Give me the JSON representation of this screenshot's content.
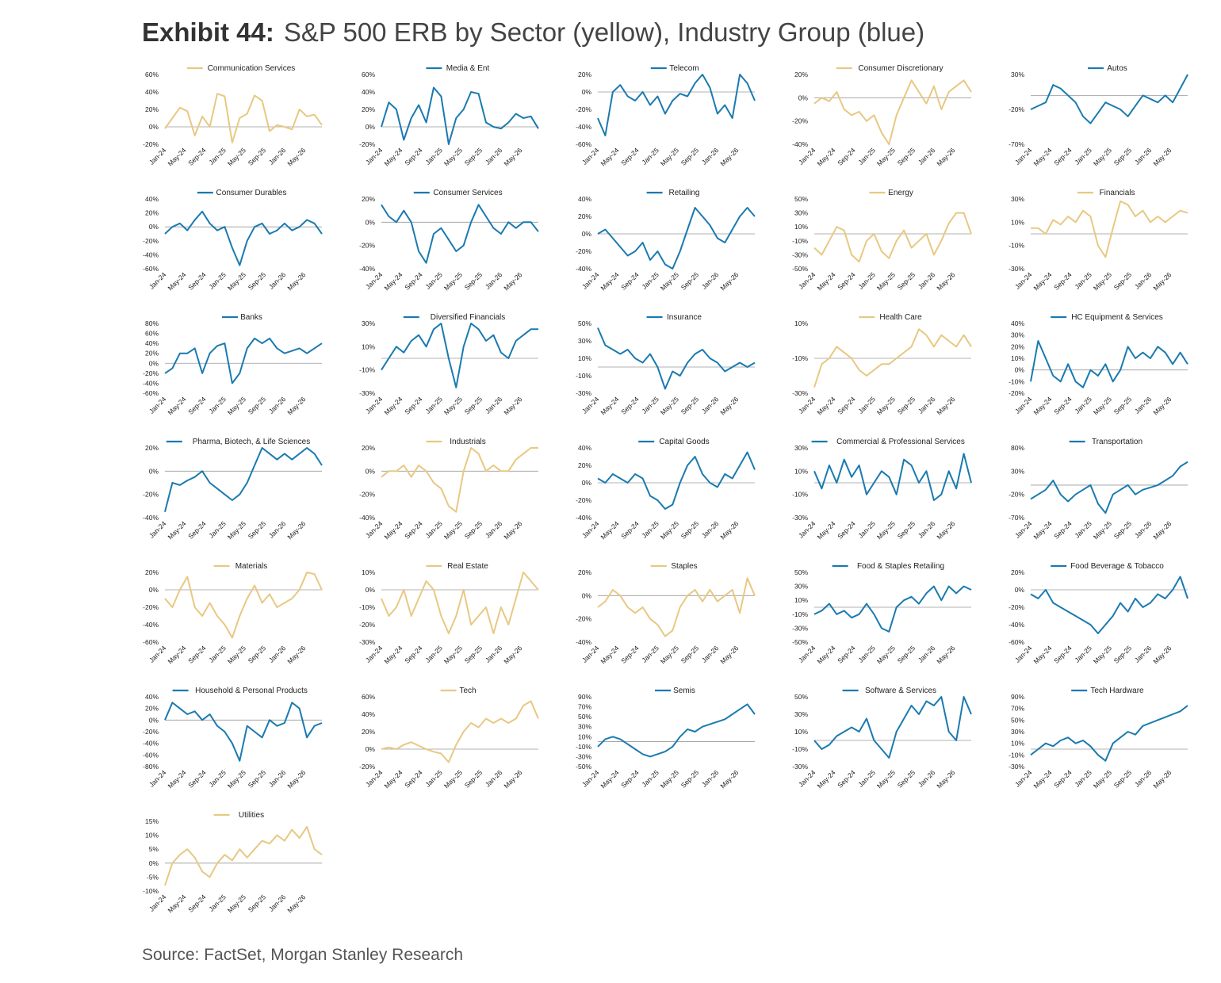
{
  "header": {
    "exhibit": "Exhibit 44:",
    "title": "S&P 500 ERB by Sector (yellow), Industry Group (blue)"
  },
  "footer": {
    "source": "Source: FactSet, Morgan Stanley Research"
  },
  "colors": {
    "sector": "#E8C882",
    "industry": "#1A7AB0",
    "zero_line": "#9a9a9a"
  },
  "x_ticks": [
    "Jan-24",
    "May-24",
    "Sep-24",
    "Jan-25",
    "May-25",
    "Sep-25",
    "Jan-26",
    "May-26"
  ],
  "chart_data": [
    {
      "type": "line",
      "name": "Communication Services",
      "kind": "sector",
      "ylim": [
        -20,
        60
      ],
      "yticks": [
        "-20%",
        "0%",
        "20%",
        "40%",
        "60%"
      ],
      "y": [
        -2,
        10,
        22,
        18,
        -10,
        12,
        0,
        38,
        35,
        -18,
        10,
        15,
        36,
        30,
        -5,
        2,
        0,
        -3,
        20,
        12,
        14,
        2
      ]
    },
    {
      "type": "line",
      "name": "Media & Ent",
      "kind": "industry",
      "ylim": [
        -20,
        60
      ],
      "yticks": [
        "-20%",
        "0%",
        "20%",
        "40%",
        "60%"
      ],
      "y": [
        0,
        28,
        20,
        -15,
        10,
        25,
        5,
        45,
        35,
        -20,
        10,
        20,
        40,
        38,
        5,
        0,
        -2,
        5,
        15,
        10,
        12,
        -2
      ]
    },
    {
      "type": "line",
      "name": "Telecom",
      "kind": "industry",
      "ylim": [
        -60,
        20
      ],
      "yticks": [
        "-60%",
        "-40%",
        "-20%",
        "0%",
        "20%"
      ],
      "y": [
        -30,
        -50,
        0,
        8,
        -5,
        -10,
        0,
        -15,
        -5,
        -25,
        -10,
        -2,
        -5,
        10,
        20,
        5,
        -25,
        -15,
        -30,
        20,
        10,
        -10
      ]
    },
    {
      "type": "line",
      "name": "Consumer Discretionary",
      "kind": "sector",
      "ylim": [
        -40,
        20
      ],
      "yticks": [
        "-40%",
        "-20%",
        "0%",
        "20%"
      ],
      "y": [
        -5,
        0,
        -3,
        5,
        -10,
        -15,
        -12,
        -20,
        -15,
        -30,
        -40,
        -15,
        0,
        15,
        5,
        -5,
        10,
        -10,
        5,
        10,
        15,
        5
      ]
    },
    {
      "type": "line",
      "name": "Autos",
      "kind": "industry",
      "ylim": [
        -70,
        30
      ],
      "yticks": [
        "-70%",
        "-20%",
        "30%"
      ],
      "y": [
        -20,
        -15,
        -10,
        15,
        10,
        0,
        -10,
        -30,
        -40,
        -25,
        -10,
        -15,
        -20,
        -30,
        -15,
        0,
        -5,
        -10,
        0,
        -10,
        10,
        30
      ]
    },
    {
      "type": "line",
      "name": "Consumer Durables",
      "kind": "industry",
      "ylim": [
        -60,
        40
      ],
      "yticks": [
        "-60%",
        "-40%",
        "-20%",
        "0%",
        "20%",
        "40%"
      ],
      "y": [
        -10,
        0,
        5,
        -5,
        10,
        22,
        5,
        -5,
        0,
        -30,
        -55,
        -20,
        0,
        5,
        -10,
        -5,
        5,
        -5,
        0,
        10,
        5,
        -10
      ]
    },
    {
      "type": "line",
      "name": "Consumer Services",
      "kind": "industry",
      "ylim": [
        -40,
        20
      ],
      "yticks": [
        "-40%",
        "-20%",
        "0%",
        "20%"
      ],
      "y": [
        15,
        5,
        0,
        10,
        0,
        -25,
        -35,
        -10,
        -5,
        -15,
        -25,
        -20,
        0,
        15,
        5,
        -5,
        -10,
        0,
        -5,
        0,
        0,
        -8
      ]
    },
    {
      "type": "line",
      "name": "Retailing",
      "kind": "industry",
      "ylim": [
        -40,
        40
      ],
      "yticks": [
        "-40%",
        "-20%",
        "0%",
        "20%",
        "40%"
      ],
      "y": [
        0,
        5,
        -5,
        -15,
        -25,
        -20,
        -10,
        -30,
        -20,
        -35,
        -40,
        -20,
        5,
        30,
        20,
        10,
        -5,
        -10,
        5,
        20,
        30,
        20
      ]
    },
    {
      "type": "line",
      "name": "Energy",
      "kind": "sector",
      "ylim": [
        -50,
        50
      ],
      "yticks": [
        "-50%",
        "-30%",
        "-10%",
        "10%",
        "30%",
        "50%"
      ],
      "y": [
        -20,
        -30,
        -10,
        10,
        5,
        -30,
        -40,
        -10,
        0,
        -25,
        -35,
        -10,
        5,
        -20,
        -10,
        0,
        -30,
        -10,
        15,
        30,
        30,
        0
      ]
    },
    {
      "type": "line",
      "name": "Financials",
      "kind": "sector",
      "ylim": [
        -30,
        30
      ],
      "yticks": [
        "-30%",
        "-10%",
        "10%",
        "30%"
      ],
      "y": [
        5,
        5,
        0,
        12,
        8,
        15,
        10,
        20,
        15,
        -10,
        -20,
        5,
        28,
        25,
        15,
        20,
        10,
        15,
        10,
        15,
        20,
        18
      ]
    },
    {
      "type": "line",
      "name": "Banks",
      "kind": "industry",
      "ylim": [
        -60,
        80
      ],
      "yticks": [
        "-60%",
        "-40%",
        "-20%",
        "0%",
        "20%",
        "40%",
        "60%",
        "80%"
      ],
      "y": [
        -20,
        -10,
        20,
        20,
        30,
        -20,
        20,
        35,
        40,
        -40,
        -20,
        30,
        50,
        40,
        50,
        30,
        20,
        25,
        30,
        20,
        30,
        40
      ]
    },
    {
      "type": "line",
      "name": "Diversified Financials",
      "kind": "industry",
      "ylim": [
        -30,
        30
      ],
      "yticks": [
        "-30%",
        "-10%",
        "10%",
        "30%"
      ],
      "y": [
        -10,
        0,
        10,
        5,
        15,
        20,
        10,
        25,
        30,
        0,
        -25,
        10,
        30,
        25,
        15,
        20,
        5,
        0,
        15,
        20,
        25,
        25
      ]
    },
    {
      "type": "line",
      "name": "Insurance",
      "kind": "industry",
      "ylim": [
        -30,
        50
      ],
      "yticks": [
        "-30%",
        "-10%",
        "10%",
        "30%",
        "50%"
      ],
      "y": [
        45,
        25,
        20,
        15,
        20,
        10,
        5,
        15,
        0,
        -25,
        -5,
        -10,
        5,
        15,
        20,
        10,
        5,
        -5,
        0,
        5,
        0,
        5
      ]
    },
    {
      "type": "line",
      "name": "Health Care",
      "kind": "sector",
      "ylim": [
        -30,
        30
      ],
      "yticks": [
        "-30%",
        "-10%",
        "10%"
      ],
      "y": [
        -25,
        -5,
        0,
        10,
        5,
        0,
        -10,
        -15,
        -10,
        -5,
        -5,
        0,
        5,
        10,
        25,
        20,
        10,
        20,
        15,
        10,
        20,
        10
      ]
    },
    {
      "type": "line",
      "name": "HC Equipment & Services",
      "kind": "industry",
      "ylim": [
        -20,
        40
      ],
      "yticks": [
        "-20%",
        "-10%",
        "0%",
        "10%",
        "20%",
        "30%",
        "40%"
      ],
      "y": [
        -10,
        25,
        10,
        -5,
        -10,
        5,
        -10,
        -15,
        0,
        -5,
        5,
        -10,
        0,
        20,
        10,
        15,
        10,
        20,
        15,
        5,
        15,
        5
      ]
    },
    {
      "type": "line",
      "name": "Pharma, Biotech, & Life Sciences",
      "kind": "industry",
      "ylim": [
        -40,
        20
      ],
      "yticks": [
        "-40%",
        "-20%",
        "0%",
        "20%"
      ],
      "y": [
        -35,
        -10,
        -12,
        -8,
        -5,
        0,
        -10,
        -15,
        -20,
        -25,
        -20,
        -10,
        5,
        20,
        15,
        10,
        15,
        10,
        15,
        20,
        15,
        5
      ]
    },
    {
      "type": "line",
      "name": "Industrials",
      "kind": "sector",
      "ylim": [
        -40,
        20
      ],
      "yticks": [
        "-40%",
        "-20%",
        "0%",
        "20%"
      ],
      "y": [
        -5,
        0,
        0,
        5,
        -5,
        5,
        0,
        -10,
        -15,
        -30,
        -35,
        0,
        20,
        15,
        0,
        5,
        0,
        0,
        10,
        15,
        30,
        20
      ]
    },
    {
      "type": "line",
      "name": "Capital Goods",
      "kind": "industry",
      "ylim": [
        -40,
        40
      ],
      "yticks": [
        "-40%",
        "-20%",
        "0%",
        "20%",
        "40%"
      ],
      "y": [
        5,
        0,
        10,
        5,
        0,
        10,
        5,
        -15,
        -20,
        -30,
        -25,
        0,
        20,
        30,
        10,
        0,
        -5,
        10,
        5,
        20,
        35,
        15
      ]
    },
    {
      "type": "line",
      "name": "Commercial & Professional Services",
      "kind": "industry",
      "ylim": [
        -30,
        30
      ],
      "yticks": [
        "-30%",
        "-10%",
        "10%",
        "30%"
      ],
      "y": [
        10,
        -5,
        15,
        0,
        20,
        5,
        15,
        -10,
        0,
        10,
        5,
        -10,
        20,
        15,
        0,
        10,
        -15,
        -10,
        10,
        -5,
        25,
        0
      ]
    },
    {
      "type": "line",
      "name": "Transportation",
      "kind": "industry",
      "ylim": [
        -70,
        80
      ],
      "yticks": [
        "-70%",
        "-20%",
        "30%",
        "80%"
      ],
      "y": [
        -30,
        -20,
        -10,
        10,
        -20,
        -35,
        -20,
        -10,
        0,
        -40,
        -60,
        -20,
        -10,
        0,
        -20,
        -10,
        -5,
        0,
        10,
        20,
        40,
        50
      ]
    },
    {
      "type": "line",
      "name": "Materials",
      "kind": "sector",
      "ylim": [
        -60,
        20
      ],
      "yticks": [
        "-60%",
        "-40%",
        "-20%",
        "0%",
        "20%"
      ],
      "y": [
        -10,
        -20,
        0,
        15,
        -20,
        -30,
        -15,
        -30,
        -40,
        -55,
        -30,
        -10,
        5,
        -15,
        -5,
        -20,
        -15,
        -10,
        0,
        20,
        18,
        0
      ]
    },
    {
      "type": "line",
      "name": "Real Estate",
      "kind": "sector",
      "ylim": [
        -30,
        10
      ],
      "yticks": [
        "-30%",
        "-20%",
        "-10%",
        "0%",
        "10%"
      ],
      "y": [
        -5,
        -15,
        -10,
        0,
        -15,
        -5,
        5,
        0,
        -15,
        -25,
        -15,
        0,
        -20,
        -15,
        -10,
        -25,
        -10,
        -20,
        -5,
        10,
        5,
        0
      ]
    },
    {
      "type": "line",
      "name": "Staples",
      "kind": "sector",
      "ylim": [
        -40,
        20
      ],
      "yticks": [
        "-40%",
        "-20%",
        "0%",
        "20%"
      ],
      "y": [
        -10,
        -5,
        5,
        0,
        -10,
        -15,
        -10,
        -20,
        -25,
        -35,
        -30,
        -10,
        0,
        5,
        -5,
        5,
        -5,
        0,
        5,
        -15,
        15,
        0
      ]
    },
    {
      "type": "line",
      "name": "Food & Staples Retailing",
      "kind": "industry",
      "ylim": [
        -50,
        50
      ],
      "yticks": [
        "-50%",
        "-30%",
        "-10%",
        "10%",
        "30%",
        "50%"
      ],
      "y": [
        -10,
        -5,
        5,
        -10,
        -5,
        -15,
        -10,
        5,
        -10,
        -30,
        -35,
        0,
        10,
        15,
        5,
        20,
        30,
        10,
        30,
        20,
        30,
        25
      ]
    },
    {
      "type": "line",
      "name": "Food Beverage & Tobacco",
      "kind": "industry",
      "ylim": [
        -60,
        20
      ],
      "yticks": [
        "-60%",
        "-40%",
        "-20%",
        "0%",
        "20%"
      ],
      "y": [
        -5,
        -10,
        0,
        -15,
        -20,
        -25,
        -30,
        -35,
        -40,
        -50,
        -40,
        -30,
        -15,
        -25,
        -10,
        -20,
        -15,
        -5,
        -10,
        0,
        15,
        -10
      ]
    },
    {
      "type": "line",
      "name": "Household & Personal Products",
      "kind": "industry",
      "ylim": [
        -80,
        40
      ],
      "yticks": [
        "-80%",
        "-60%",
        "-40%",
        "-20%",
        "0%",
        "20%",
        "40%"
      ],
      "y": [
        0,
        30,
        20,
        10,
        15,
        0,
        10,
        -10,
        -20,
        -40,
        -70,
        -10,
        -20,
        -30,
        0,
        -10,
        -5,
        30,
        20,
        -30,
        -10,
        -5
      ]
    },
    {
      "type": "line",
      "name": "Tech",
      "kind": "sector",
      "ylim": [
        -20,
        60
      ],
      "yticks": [
        "-20%",
        "0%",
        "20%",
        "40%",
        "60%"
      ],
      "y": [
        0,
        2,
        0,
        5,
        8,
        4,
        0,
        -3,
        -5,
        -15,
        5,
        20,
        30,
        25,
        35,
        30,
        35,
        30,
        35,
        50,
        55,
        35
      ]
    },
    {
      "type": "line",
      "name": "Semis",
      "kind": "industry",
      "ylim": [
        -50,
        90
      ],
      "yticks": [
        "-50%",
        "-30%",
        "-10%",
        "10%",
        "30%",
        "50%",
        "70%",
        "90%"
      ],
      "y": [
        -10,
        5,
        10,
        5,
        -5,
        -15,
        -25,
        -30,
        -25,
        -20,
        -10,
        10,
        25,
        20,
        30,
        35,
        40,
        45,
        55,
        65,
        75,
        55
      ]
    },
    {
      "type": "line",
      "name": "Software & Services",
      "kind": "industry",
      "ylim": [
        -30,
        50
      ],
      "yticks": [
        "-30%",
        "-10%",
        "10%",
        "30%",
        "50%"
      ],
      "y": [
        0,
        -10,
        -5,
        5,
        10,
        15,
        10,
        25,
        0,
        -10,
        -20,
        10,
        25,
        40,
        30,
        45,
        40,
        50,
        10,
        0,
        55,
        30
      ]
    },
    {
      "type": "line",
      "name": "Tech Hardware",
      "kind": "industry",
      "ylim": [
        -30,
        90
      ],
      "yticks": [
        "-30%",
        "-10%",
        "10%",
        "30%",
        "50%",
        "70%",
        "90%"
      ],
      "y": [
        -10,
        0,
        10,
        5,
        15,
        20,
        10,
        15,
        5,
        -10,
        -20,
        10,
        20,
        30,
        25,
        40,
        45,
        50,
        55,
        60,
        65,
        75
      ]
    },
    {
      "type": "line",
      "name": "Utilities",
      "kind": "sector",
      "ylim": [
        -10,
        15
      ],
      "yticks": [
        "-10%",
        "-5%",
        "0%",
        "5%",
        "10%",
        "15%"
      ],
      "y": [
        -8,
        0,
        3,
        5,
        2,
        -3,
        -5,
        0,
        3,
        1,
        5,
        2,
        5,
        8,
        7,
        10,
        8,
        12,
        9,
        13,
        5,
        3
      ]
    }
  ]
}
